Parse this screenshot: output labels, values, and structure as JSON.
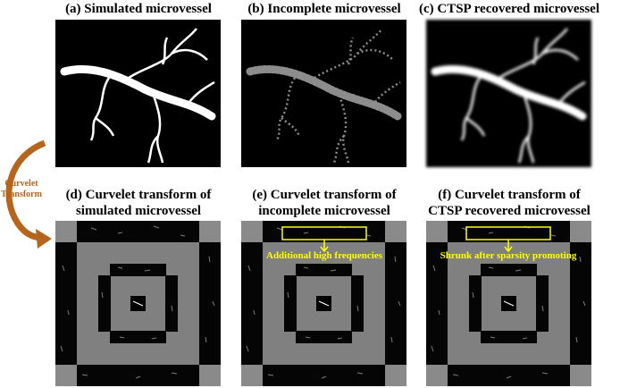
{
  "top_panels": [
    {
      "title": "(a) Simulated microvessel"
    },
    {
      "title": "(b) Incomplete microvessel"
    },
    {
      "title": "(c) CTSP recovered microvessel"
    }
  ],
  "bottom_panels": [
    {
      "title_lines": [
        "(d) Curvelet transform of",
        "simulated microvessel"
      ]
    },
    {
      "title_lines": [
        "(e) Curvelet transform of",
        "incomplete microvessel"
      ],
      "annotation": "Additional high frequencies"
    },
    {
      "title_lines": [
        "(f) Curvelet transform of",
        "CTSP recovered microvessel"
      ],
      "annotation": "Shrunk after sparsity promoting"
    }
  ],
  "arrow": {
    "lines": [
      "Curvelet",
      "Transform"
    ]
  }
}
